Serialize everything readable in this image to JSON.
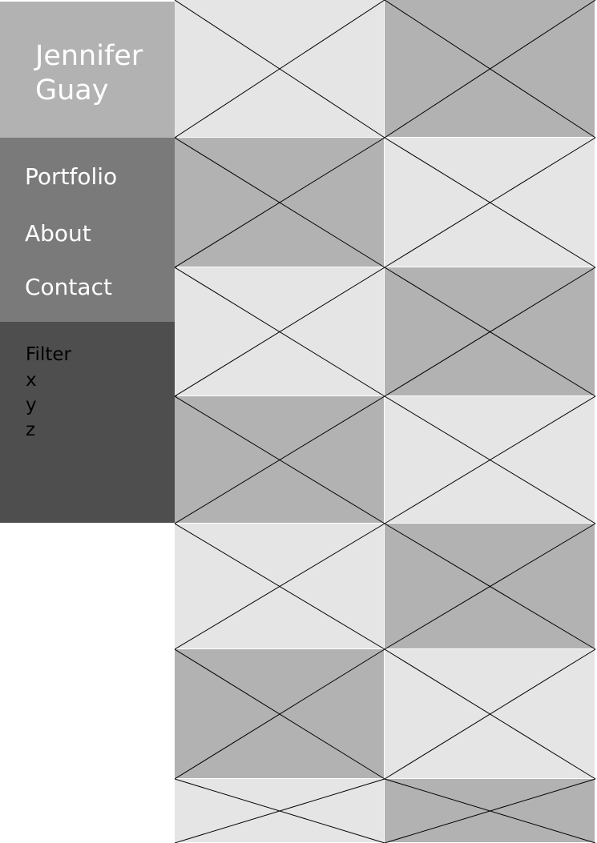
{
  "brand": {
    "name_line1": "Jennifer",
    "name_line2": "Guay"
  },
  "nav": {
    "items": [
      {
        "label": "Portfolio"
      },
      {
        "label": "About"
      },
      {
        "label": "Contact"
      }
    ]
  },
  "filter": {
    "title": "Filter",
    "options": [
      "x",
      "y",
      "z"
    ]
  },
  "colors": {
    "brand_bg": "#b2b2b2",
    "nav_bg": "#7a7a7a",
    "filter_bg": "#4e4e4e",
    "tile_light": "#e5e5e5",
    "tile_dark": "#b2b2b2",
    "tile_line": "#000000"
  },
  "gallery": {
    "tile_icon": "image-placeholder-icon",
    "tile_shades": [
      [
        "light",
        "dark"
      ],
      [
        "dark",
        "light"
      ],
      [
        "light",
        "dark"
      ],
      [
        "dark",
        "light"
      ],
      [
        "light",
        "dark"
      ],
      [
        "dark",
        "light"
      ],
      [
        "light",
        "dark"
      ]
    ]
  }
}
